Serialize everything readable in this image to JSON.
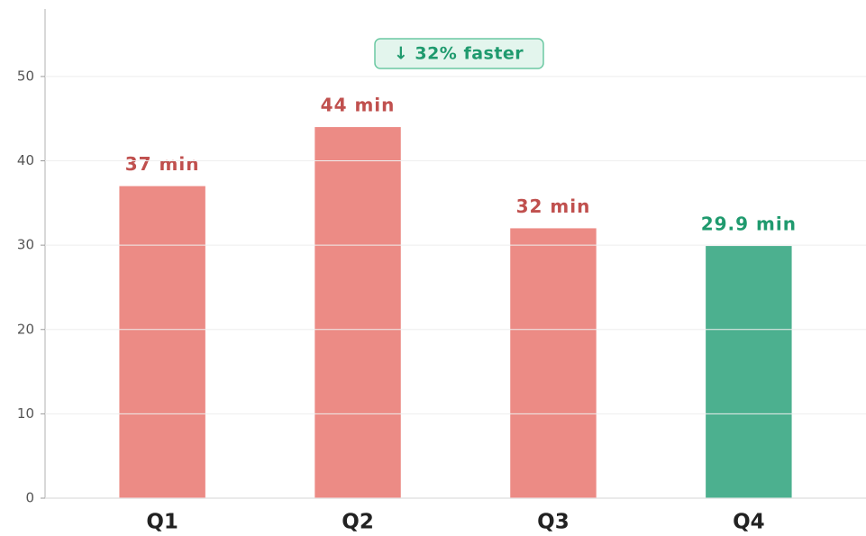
{
  "chart_data": {
    "type": "bar",
    "categories": [
      "Q1",
      "Q2",
      "Q3",
      "Q4"
    ],
    "values": [
      37,
      44,
      32,
      29.9
    ],
    "value_labels": [
      "37 min",
      "44 min",
      "32 min",
      "29.9 min"
    ],
    "colors": [
      "#ec8b85",
      "#ec8b85",
      "#ec8b85",
      "#4cb08f"
    ],
    "label_colors": [
      "#c0504e",
      "#c0504e",
      "#c0504e",
      "#1f9a6e"
    ],
    "annotation": "↓ 32% faster",
    "ylim": [
      0,
      58
    ],
    "yticks": [
      0,
      10,
      20,
      30,
      40,
      50
    ],
    "grid": true
  }
}
